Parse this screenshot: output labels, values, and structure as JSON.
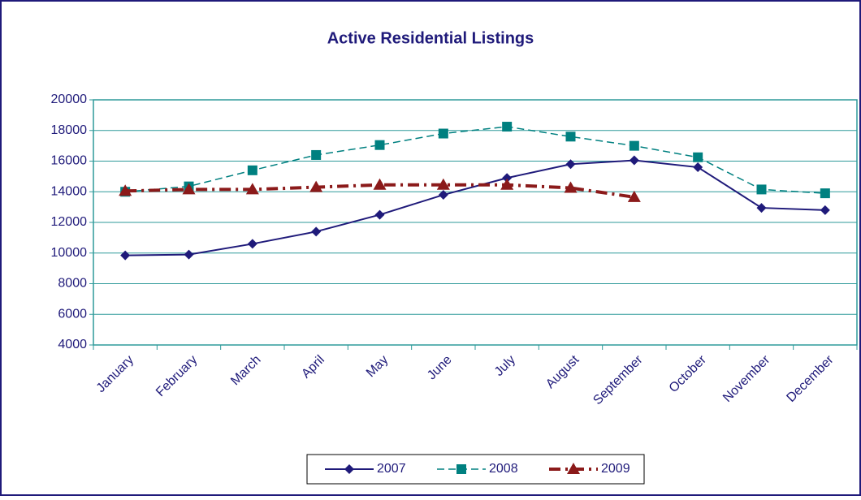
{
  "chart_data": {
    "type": "line",
    "title": "Active Residential Listings",
    "categories": [
      "January",
      "February",
      "March",
      "April",
      "May",
      "June",
      "July",
      "August",
      "September",
      "October",
      "November",
      "December"
    ],
    "series": [
      {
        "name": "2007",
        "color": "#1f1a7a",
        "marker": "diamond",
        "dash": "solid",
        "values": [
          9850,
          9900,
          10600,
          11400,
          12500,
          13800,
          14900,
          15800,
          16050,
          15600,
          12950,
          12800
        ]
      },
      {
        "name": "2008",
        "color": "#008080",
        "marker": "square",
        "dash": "dashed",
        "values": [
          14000,
          14350,
          15400,
          16400,
          17050,
          17800,
          18250,
          17600,
          17000,
          16250,
          14150,
          13900
        ]
      },
      {
        "name": "2009",
        "color": "#8b1a1a",
        "marker": "triangle",
        "dash": "dashdot",
        "values": [
          14050,
          14150,
          14150,
          14300,
          14450,
          14450,
          14450,
          14250,
          13650,
          null,
          null,
          null
        ]
      }
    ],
    "ylim": [
      4000,
      20000
    ],
    "yticks": [
      4000,
      6000,
      8000,
      10000,
      12000,
      14000,
      16000,
      18000,
      20000
    ],
    "grid": true,
    "legend": "bottom"
  }
}
